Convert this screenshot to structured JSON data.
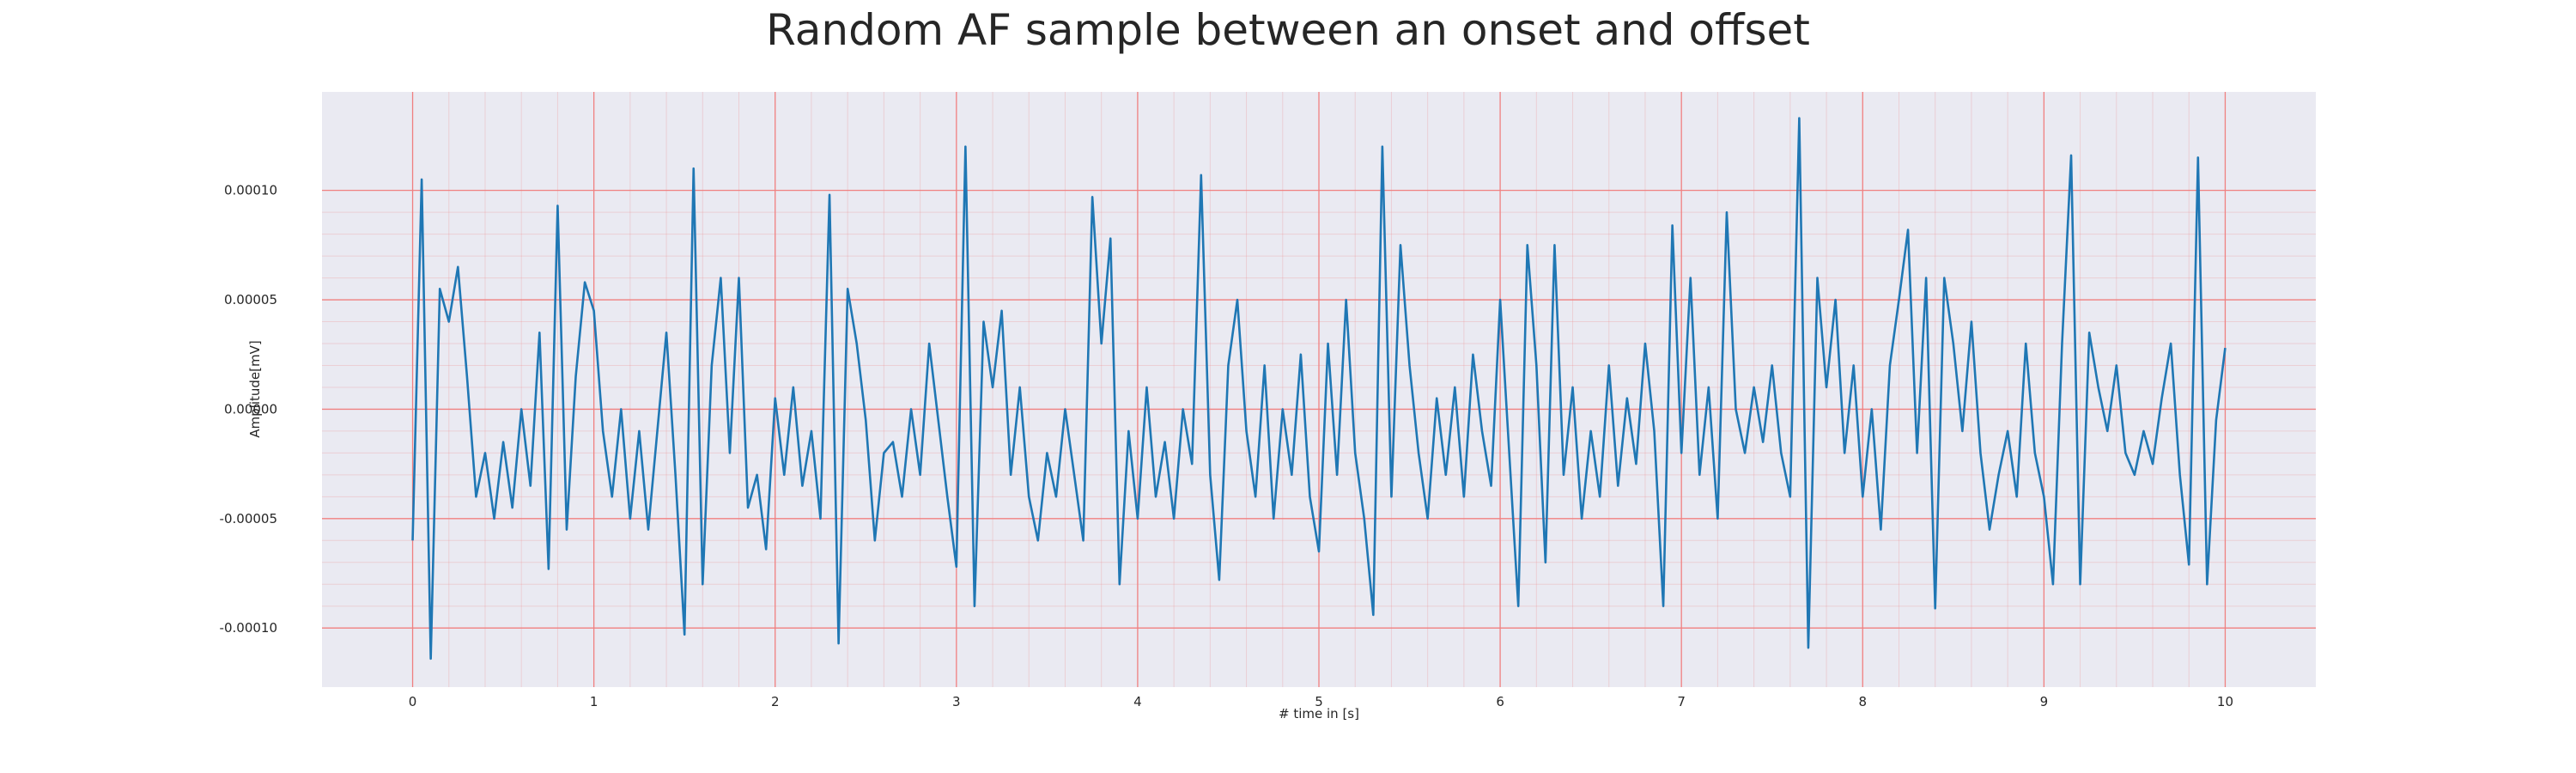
{
  "chart_data": {
    "type": "line",
    "title": "Random AF sample between an onset and offset",
    "xlabel": "# time in [s]",
    "ylabel": "Amplitude[mV]",
    "xlim": [
      -0.5,
      10.5
    ],
    "ylim": [
      -0.000127,
      0.000145
    ],
    "xticks": [
      0,
      1,
      2,
      3,
      4,
      5,
      6,
      7,
      8,
      9,
      10
    ],
    "yticks": [
      {
        "value": -0.0001,
        "label": "-0.00010"
      },
      {
        "value": -5e-05,
        "label": "-0.00005"
      },
      {
        "value": 0,
        "label": "0.00000"
      },
      {
        "value": 5e-05,
        "label": "0.00005"
      },
      {
        "value": 0.0001,
        "label": "0.00010"
      }
    ],
    "grid": true,
    "grid_color": "#f08080",
    "minor_grid": true,
    "background": "#eaeaf2",
    "x": [
      0,
      0.05,
      0.1,
      0.15,
      0.2,
      0.25,
      0.3,
      0.35,
      0.4,
      0.45,
      0.5,
      0.55,
      0.6,
      0.65,
      0.7,
      0.75,
      0.8,
      0.85,
      0.9,
      0.95,
      1,
      1.05,
      1.1,
      1.15,
      1.2,
      1.25,
      1.3,
      1.35,
      1.4,
      1.45,
      1.5,
      1.55,
      1.6,
      1.65,
      1.7,
      1.75,
      1.8,
      1.85,
      1.9,
      1.95,
      2,
      2.05,
      2.1,
      2.15,
      2.2,
      2.25,
      2.3,
      2.35,
      2.4,
      2.45,
      2.5,
      2.55,
      2.6,
      2.65,
      2.7,
      2.75,
      2.8,
      2.85,
      2.9,
      2.95,
      3,
      3.05,
      3.1,
      3.15,
      3.2,
      3.25,
      3.3,
      3.35,
      3.4,
      3.45,
      3.5,
      3.55,
      3.6,
      3.65,
      3.7,
      3.75,
      3.8,
      3.85,
      3.9,
      3.95,
      4,
      4.05,
      4.1,
      4.15,
      4.2,
      4.25,
      4.3,
      4.35,
      4.4,
      4.45,
      4.5,
      4.55,
      4.6,
      4.65,
      4.7,
      4.75,
      4.8,
      4.85,
      4.9,
      4.95,
      5,
      5.05,
      5.1,
      5.15,
      5.2,
      5.25,
      5.3,
      5.35,
      5.4,
      5.45,
      5.5,
      5.55,
      5.6,
      5.65,
      5.7,
      5.75,
      5.8,
      5.85,
      5.9,
      5.95,
      6,
      6.05,
      6.1,
      6.15,
      6.2,
      6.25,
      6.3,
      6.35,
      6.4,
      6.45,
      6.5,
      6.55,
      6.6,
      6.65,
      6.7,
      6.75,
      6.8,
      6.85,
      6.9,
      6.95,
      7,
      7.05,
      7.1,
      7.15,
      7.2,
      7.25,
      7.3,
      7.35,
      7.4,
      7.45,
      7.5,
      7.55,
      7.6,
      7.65,
      7.7,
      7.75,
      7.8,
      7.85,
      7.9,
      7.95,
      8,
      8.05,
      8.1,
      8.15,
      8.2,
      8.25,
      8.3,
      8.35,
      8.4,
      8.45,
      8.5,
      8.55,
      8.6,
      8.65,
      8.7,
      8.75,
      8.8,
      8.85,
      8.9,
      8.95,
      9,
      9.05,
      9.1,
      9.15,
      9.2,
      9.25,
      9.3,
      9.35,
      9.4,
      9.45,
      9.5,
      9.55,
      9.6,
      9.65,
      9.7,
      9.75,
      9.8,
      9.85,
      9.9,
      9.95,
      10
    ],
    "series": [
      {
        "color": "#1f77b4",
        "values": [
          -6e-05,
          0.000105,
          -0.000114,
          5.5e-05,
          4e-05,
          6.5e-05,
          1.5e-05,
          -4e-05,
          -2e-05,
          -5e-05,
          -1.5e-05,
          -4.5e-05,
          0,
          -3.5e-05,
          3.5e-05,
          -7.3e-05,
          9.3e-05,
          -5.5e-05,
          1.5e-05,
          5.8e-05,
          4.5e-05,
          -1e-05,
          -4e-05,
          0,
          -5e-05,
          -1e-05,
          -5.5e-05,
          -1e-05,
          3.5e-05,
          -3e-05,
          -0.000103,
          0.00011,
          -8e-05,
          2e-05,
          6e-05,
          -2e-05,
          6e-05,
          -4.5e-05,
          -3e-05,
          -6.4e-05,
          5e-06,
          -3e-05,
          1e-05,
          -3.5e-05,
          -1e-05,
          -5e-05,
          9.8e-05,
          -0.000107,
          5.5e-05,
          3e-05,
          -5e-06,
          -6e-05,
          -2e-05,
          -1.5e-05,
          -4e-05,
          0,
          -3e-05,
          3e-05,
          -5e-06,
          -4e-05,
          -7.2e-05,
          0.00012,
          -9e-05,
          4e-05,
          1e-05,
          4.5e-05,
          -3e-05,
          1e-05,
          -4e-05,
          -6e-05,
          -2e-05,
          -4e-05,
          0,
          -3e-05,
          -6e-05,
          9.7e-05,
          3e-05,
          7.8e-05,
          -8e-05,
          -1e-05,
          -5e-05,
          1e-05,
          -4e-05,
          -1.5e-05,
          -5e-05,
          0,
          -2.5e-05,
          0.000107,
          -3e-05,
          -7.8e-05,
          2e-05,
          5e-05,
          -1e-05,
          -4e-05,
          2e-05,
          -5e-05,
          0,
          -3e-05,
          2.5e-05,
          -4e-05,
          -6.5e-05,
          3e-05,
          -3e-05,
          5e-05,
          -2e-05,
          -5e-05,
          -9.4e-05,
          0.00012,
          -4e-05,
          7.5e-05,
          2e-05,
          -2e-05,
          -5e-05,
          5e-06,
          -3e-05,
          1e-05,
          -4e-05,
          2.5e-05,
          -1e-05,
          -3.5e-05,
          5e-05,
          -2e-05,
          -9e-05,
          7.5e-05,
          2e-05,
          -7e-05,
          7.5e-05,
          -3e-05,
          1e-05,
          -5e-05,
          -1e-05,
          -4e-05,
          2e-05,
          -3.5e-05,
          5e-06,
          -2.5e-05,
          3e-05,
          -1e-05,
          -9e-05,
          8.4e-05,
          -2e-05,
          6e-05,
          -3e-05,
          1e-05,
          -5e-05,
          9e-05,
          0,
          -2e-05,
          1e-05,
          -1.5e-05,
          2e-05,
          -2e-05,
          -4e-05,
          0.000133,
          -0.000109,
          6e-05,
          1e-05,
          5e-05,
          -2e-05,
          2e-05,
          -4e-05,
          0,
          -5.5e-05,
          2e-05,
          5e-05,
          8.2e-05,
          -2e-05,
          6e-05,
          -9.1e-05,
          6e-05,
          3e-05,
          -1e-05,
          4e-05,
          -2e-05,
          -5.5e-05,
          -3e-05,
          -1e-05,
          -4e-05,
          3e-05,
          -2e-05,
          -4e-05,
          -8e-05,
          3e-05,
          0.000116,
          -8e-05,
          3.5e-05,
          1e-05,
          -1e-05,
          2e-05,
          -2e-05,
          -3e-05,
          -1e-05,
          -2.5e-05,
          5e-06,
          3e-05,
          -3e-05,
          -7.1e-05,
          0.000115,
          -8e-05,
          -5e-06,
          2.8e-05
        ]
      }
    ]
  }
}
